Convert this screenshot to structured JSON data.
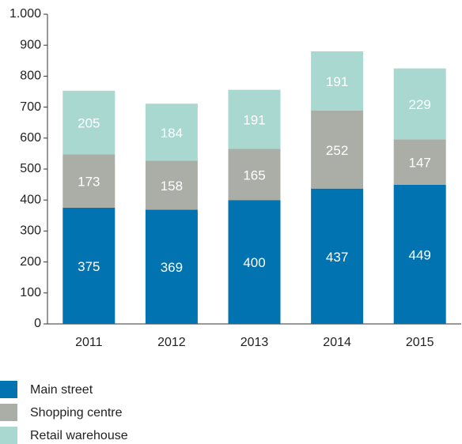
{
  "chart_data": {
    "type": "stacked_bar",
    "categories": [
      "2011",
      "2012",
      "2013",
      "2014",
      "2015"
    ],
    "series": [
      {
        "name": "Main street",
        "color": "#0073b0",
        "values": [
          375,
          369,
          400,
          437,
          449
        ]
      },
      {
        "name": "Shopping centre",
        "color": "#aaaea7",
        "values": [
          173,
          158,
          165,
          252,
          147
        ]
      },
      {
        "name": "Retail warehouse",
        "color": "#a8d8d0",
        "values": [
          205,
          184,
          191,
          191,
          229
        ]
      }
    ],
    "ylim": [
      0,
      1000
    ],
    "yticks": [
      0,
      100,
      200,
      300,
      400,
      500,
      600,
      700,
      800,
      900,
      {
        "value": 1000,
        "label": "1.000"
      }
    ],
    "legend": "bottom-left"
  }
}
